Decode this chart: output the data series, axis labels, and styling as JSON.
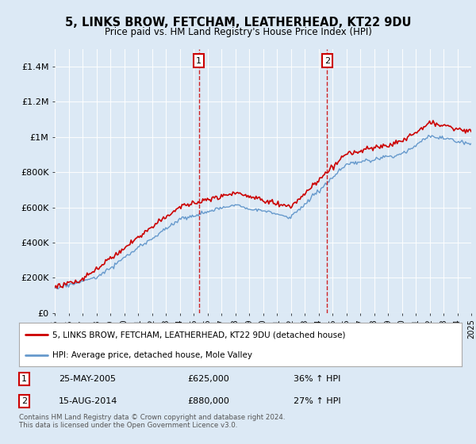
{
  "title": "5, LINKS BROW, FETCHAM, LEATHERHEAD, KT22 9DU",
  "subtitle": "Price paid vs. HM Land Registry's House Price Index (HPI)",
  "background_color": "#dce9f5",
  "plot_bg_color": "#dce9f5",
  "ylim": [
    0,
    1500000
  ],
  "yticks": [
    0,
    200000,
    400000,
    600000,
    800000,
    1000000,
    1200000,
    1400000
  ],
  "ytick_labels": [
    "£0",
    "£200K",
    "£400K",
    "£600K",
    "£800K",
    "£1M",
    "£1.2M",
    "£1.4M"
  ],
  "red_line_color": "#cc0000",
  "blue_line_color": "#6699cc",
  "marker1_date": 2005.38,
  "marker1_value": 625000,
  "marker2_date": 2014.62,
  "marker2_value": 880000,
  "legend1": "5, LINKS BROW, FETCHAM, LEATHERHEAD, KT22 9DU (detached house)",
  "legend2": "HPI: Average price, detached house, Mole Valley",
  "table_row1": [
    "1",
    "25-MAY-2005",
    "£625,000",
    "36% ↑ HPI"
  ],
  "table_row2": [
    "2",
    "15-AUG-2014",
    "£880,000",
    "27% ↑ HPI"
  ],
  "footer": "Contains HM Land Registry data © Crown copyright and database right 2024.\nThis data is licensed under the Open Government Licence v3.0.",
  "xmin": 1995,
  "xmax": 2025
}
